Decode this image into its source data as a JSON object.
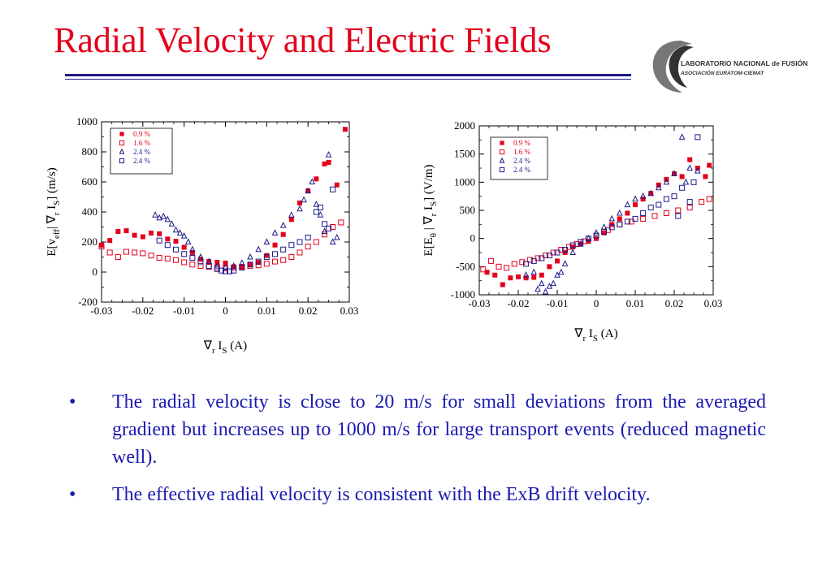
{
  "slide": {
    "title": "Radial Velocity and Electric Fields",
    "title_color": "#e3001b",
    "accent_color": "#1c1c8a",
    "text_color": "#1a1ab0"
  },
  "logo": {
    "line1": "LABORATORIO NACIONAL de FUSIÓN",
    "line2": "ASOCIACIÓN EURATOM-CIEMAT"
  },
  "bullets": [
    {
      "marker": "•",
      "text": "The radial velocity is close to 20 m/s for small deviations from the averaged gradient but increases up to 1000 m/s  for large transport events (reduced magnetic well)."
    },
    {
      "marker": "•",
      "text": "The effective radial velocity is consistent with the ExB drift velocity."
    }
  ],
  "series_styles": [
    {
      "marker": "square-filled",
      "color": "#e3001b"
    },
    {
      "marker": "square-open",
      "color": "#e3001b"
    },
    {
      "marker": "triangle-open",
      "color": "#1c1c8a"
    },
    {
      "marker": "square-open",
      "color": "#1c1c8a"
    }
  ],
  "chart_data": [
    {
      "type": "scatter",
      "ylabel": "E[v_eff| ∇_r I_S] (m/s)",
      "ylabel_parts": {
        "a": "E[v",
        "b": "eff",
        "c": "| ∇",
        "d": "r",
        "e": " I",
        "f": "S",
        "g": "] (m/s)"
      },
      "xlabel": "∇_r I_S (A)",
      "xlabel_parts": {
        "a": "∇",
        "b": "r",
        "c": " I",
        "d": "S",
        "e": " (A)"
      },
      "xlim": [
        -0.03,
        0.03
      ],
      "ylim": [
        -200,
        1000
      ],
      "xticks": [
        -0.03,
        -0.02,
        -0.01,
        0,
        0.01,
        0.02,
        0.03
      ],
      "xtick_labels": [
        "-0.03",
        "-0.02",
        "-0.01",
        "0",
        "0.01",
        "0.02",
        "0.03"
      ],
      "yticks": [
        -200,
        0,
        200,
        400,
        600,
        800,
        1000
      ],
      "ytick_labels": [
        "-200",
        "0",
        "200",
        "400",
        "600",
        "800",
        "1000"
      ],
      "legend_position": "top-left",
      "series": [
        {
          "name": "0.9 %",
          "points": [
            [
              -0.03,
              180
            ],
            [
              -0.028,
              210
            ],
            [
              -0.026,
              270
            ],
            [
              -0.024,
              275
            ],
            [
              -0.022,
              245
            ],
            [
              -0.02,
              235
            ],
            [
              -0.018,
              260
            ],
            [
              -0.016,
              255
            ],
            [
              -0.014,
              220
            ],
            [
              -0.012,
              205
            ],
            [
              -0.01,
              165
            ],
            [
              -0.008,
              130
            ],
            [
              -0.006,
              85
            ],
            [
              -0.004,
              70
            ],
            [
              -0.002,
              65
            ],
            [
              0.0,
              60
            ],
            [
              0.002,
              35
            ],
            [
              0.004,
              30
            ],
            [
              0.006,
              50
            ],
            [
              0.008,
              65
            ],
            [
              0.01,
              110
            ],
            [
              0.012,
              180
            ],
            [
              0.014,
              250
            ],
            [
              0.016,
              350
            ],
            [
              0.018,
              460
            ],
            [
              0.02,
              540
            ],
            [
              0.022,
              620
            ],
            [
              0.024,
              720
            ],
            [
              0.025,
              730
            ],
            [
              0.027,
              580
            ],
            [
              0.029,
              950
            ]
          ]
        },
        {
          "name": "1.6 %",
          "points": [
            [
              -0.03,
              170
            ],
            [
              -0.028,
              130
            ],
            [
              -0.026,
              100
            ],
            [
              -0.024,
              135
            ],
            [
              -0.022,
              130
            ],
            [
              -0.02,
              125
            ],
            [
              -0.018,
              110
            ],
            [
              -0.016,
              95
            ],
            [
              -0.014,
              90
            ],
            [
              -0.012,
              80
            ],
            [
              -0.01,
              65
            ],
            [
              -0.008,
              50
            ],
            [
              -0.006,
              40
            ],
            [
              -0.004,
              35
            ],
            [
              -0.002,
              30
            ],
            [
              0.0,
              25
            ],
            [
              0.002,
              30
            ],
            [
              0.004,
              35
            ],
            [
              0.006,
              40
            ],
            [
              0.008,
              45
            ],
            [
              0.01,
              55
            ],
            [
              0.012,
              70
            ],
            [
              0.014,
              80
            ],
            [
              0.016,
              100
            ],
            [
              0.018,
              130
            ],
            [
              0.02,
              170
            ],
            [
              0.022,
              200
            ],
            [
              0.024,
              250
            ],
            [
              0.026,
              300
            ],
            [
              0.028,
              330
            ]
          ]
        },
        {
          "name": "2.4 %",
          "points": [
            [
              -0.017,
              380
            ],
            [
              -0.016,
              360
            ],
            [
              -0.015,
              370
            ],
            [
              -0.014,
              350
            ],
            [
              -0.013,
              320
            ],
            [
              -0.012,
              280
            ],
            [
              -0.011,
              260
            ],
            [
              -0.01,
              240
            ],
            [
              -0.009,
              200
            ],
            [
              -0.008,
              150
            ],
            [
              -0.006,
              100
            ],
            [
              -0.004,
              70
            ],
            [
              -0.002,
              40
            ],
            [
              0.0,
              30
            ],
            [
              0.002,
              40
            ],
            [
              0.004,
              60
            ],
            [
              0.006,
              100
            ],
            [
              0.008,
              150
            ],
            [
              0.01,
              200
            ],
            [
              0.012,
              260
            ],
            [
              0.014,
              310
            ],
            [
              0.016,
              380
            ],
            [
              0.018,
              420
            ],
            [
              0.019,
              480
            ],
            [
              0.02,
              540
            ],
            [
              0.021,
              600
            ],
            [
              0.022,
              450
            ],
            [
              0.023,
              380
            ],
            [
              0.024,
              270
            ],
            [
              0.025,
              780
            ],
            [
              0.026,
              200
            ],
            [
              0.027,
              230
            ]
          ]
        },
        {
          "name": "2.4 %",
          "points": [
            [
              -0.016,
              210
            ],
            [
              -0.014,
              180
            ],
            [
              -0.012,
              150
            ],
            [
              -0.01,
              120
            ],
            [
              -0.008,
              95
            ],
            [
              -0.006,
              70
            ],
            [
              -0.004,
              40
            ],
            [
              -0.002,
              20
            ],
            [
              -0.001,
              10
            ],
            [
              0.0,
              5
            ],
            [
              0.001,
              5
            ],
            [
              0.002,
              10
            ],
            [
              0.004,
              30
            ],
            [
              0.006,
              50
            ],
            [
              0.008,
              70
            ],
            [
              0.01,
              100
            ],
            [
              0.012,
              120
            ],
            [
              0.014,
              150
            ],
            [
              0.016,
              180
            ],
            [
              0.018,
              200
            ],
            [
              0.02,
              230
            ],
            [
              0.022,
              400
            ],
            [
              0.023,
              430
            ],
            [
              0.024,
              320
            ],
            [
              0.025,
              290
            ],
            [
              0.026,
              550
            ]
          ]
        }
      ]
    },
    {
      "type": "scatter",
      "ylabel": "E[E_θ | ∇_r I_S] (V/m)",
      "ylabel_parts": {
        "a": "E[E",
        "b": "θ",
        "c": " | ∇",
        "d": "r",
        "e": " I",
        "f": "S",
        "g": "] (V/m)"
      },
      "xlabel": "∇_r I_S (A)",
      "xlabel_parts": {
        "a": "∇",
        "b": "r",
        "c": " I",
        "d": "S",
        "e": " (A)"
      },
      "xlim": [
        -0.03,
        0.03
      ],
      "ylim": [
        -1000,
        2000
      ],
      "xticks": [
        -0.03,
        -0.02,
        -0.01,
        0,
        0.01,
        0.02,
        0.03
      ],
      "xtick_labels": [
        "-0.03",
        "-0.02",
        "-0.01",
        "0",
        "0.01",
        "0.02",
        "0.03"
      ],
      "yticks": [
        -1000,
        -500,
        0,
        500,
        1000,
        1500,
        2000
      ],
      "ytick_labels": [
        "-1000",
        "-500",
        "0",
        "500",
        "1000",
        "1500",
        "2000"
      ],
      "legend_position": "top-right",
      "series": [
        {
          "name": "0.9 %",
          "points": [
            [
              -0.028,
              -600
            ],
            [
              -0.026,
              -650
            ],
            [
              -0.024,
              -820
            ],
            [
              -0.022,
              -700
            ],
            [
              -0.02,
              -680
            ],
            [
              -0.018,
              -700
            ],
            [
              -0.016,
              -690
            ],
            [
              -0.014,
              -650
            ],
            [
              -0.012,
              -500
            ],
            [
              -0.01,
              -400
            ],
            [
              -0.008,
              -250
            ],
            [
              -0.006,
              -150
            ],
            [
              -0.004,
              -100
            ],
            [
              -0.002,
              -50
            ],
            [
              0.0,
              0
            ],
            [
              0.002,
              100
            ],
            [
              0.004,
              250
            ],
            [
              0.006,
              350
            ],
            [
              0.008,
              450
            ],
            [
              0.01,
              600
            ],
            [
              0.012,
              700
            ],
            [
              0.014,
              800
            ],
            [
              0.016,
              950
            ],
            [
              0.018,
              1050
            ],
            [
              0.02,
              1150
            ],
            [
              0.022,
              1100
            ],
            [
              0.024,
              1400
            ],
            [
              0.026,
              1250
            ],
            [
              0.028,
              1100
            ],
            [
              0.029,
              1300
            ]
          ]
        },
        {
          "name": "1.6 %",
          "points": [
            [
              -0.029,
              -550
            ],
            [
              -0.027,
              -400
            ],
            [
              -0.025,
              -500
            ],
            [
              -0.023,
              -520
            ],
            [
              -0.021,
              -450
            ],
            [
              -0.019,
              -420
            ],
            [
              -0.017,
              -380
            ],
            [
              -0.015,
              -350
            ],
            [
              -0.013,
              -300
            ],
            [
              -0.011,
              -250
            ],
            [
              -0.009,
              -200
            ],
            [
              -0.007,
              -150
            ],
            [
              -0.005,
              -100
            ],
            [
              -0.003,
              -50
            ],
            [
              0.0,
              50
            ],
            [
              0.003,
              150
            ],
            [
              0.006,
              250
            ],
            [
              0.009,
              300
            ],
            [
              0.012,
              350
            ],
            [
              0.015,
              400
            ],
            [
              0.018,
              450
            ],
            [
              0.021,
              500
            ],
            [
              0.024,
              550
            ],
            [
              0.027,
              650
            ],
            [
              0.029,
              700
            ]
          ]
        },
        {
          "name": "2.4 %",
          "points": [
            [
              -0.018,
              -650
            ],
            [
              -0.016,
              -600
            ],
            [
              -0.015,
              -900
            ],
            [
              -0.014,
              -800
            ],
            [
              -0.013,
              -950
            ],
            [
              -0.012,
              -850
            ],
            [
              -0.011,
              -800
            ],
            [
              -0.01,
              -650
            ],
            [
              -0.009,
              -600
            ],
            [
              -0.008,
              -450
            ],
            [
              -0.006,
              -250
            ],
            [
              -0.004,
              -100
            ],
            [
              -0.002,
              0
            ],
            [
              0.0,
              100
            ],
            [
              0.002,
              200
            ],
            [
              0.004,
              350
            ],
            [
              0.006,
              450
            ],
            [
              0.008,
              600
            ],
            [
              0.01,
              700
            ],
            [
              0.012,
              750
            ],
            [
              0.014,
              800
            ],
            [
              0.016,
              900
            ],
            [
              0.018,
              1000
            ],
            [
              0.02,
              1150
            ],
            [
              0.022,
              1800
            ],
            [
              0.023,
              1000
            ],
            [
              0.024,
              1250
            ],
            [
              0.026,
              1200
            ]
          ]
        },
        {
          "name": "2.4 %",
          "points": [
            [
              -0.018,
              -450
            ],
            [
              -0.016,
              -400
            ],
            [
              -0.014,
              -350
            ],
            [
              -0.012,
              -300
            ],
            [
              -0.01,
              -250
            ],
            [
              -0.008,
              -200
            ],
            [
              -0.006,
              -120
            ],
            [
              -0.004,
              -60
            ],
            [
              -0.002,
              0
            ],
            [
              0.0,
              50
            ],
            [
              0.002,
              120
            ],
            [
              0.004,
              200
            ],
            [
              0.006,
              250
            ],
            [
              0.008,
              300
            ],
            [
              0.01,
              350
            ],
            [
              0.012,
              450
            ],
            [
              0.014,
              550
            ],
            [
              0.016,
              600
            ],
            [
              0.018,
              700
            ],
            [
              0.02,
              750
            ],
            [
              0.021,
              400
            ],
            [
              0.022,
              900
            ],
            [
              0.024,
              650
            ],
            [
              0.025,
              1000
            ],
            [
              0.026,
              1800
            ]
          ]
        }
      ]
    }
  ]
}
